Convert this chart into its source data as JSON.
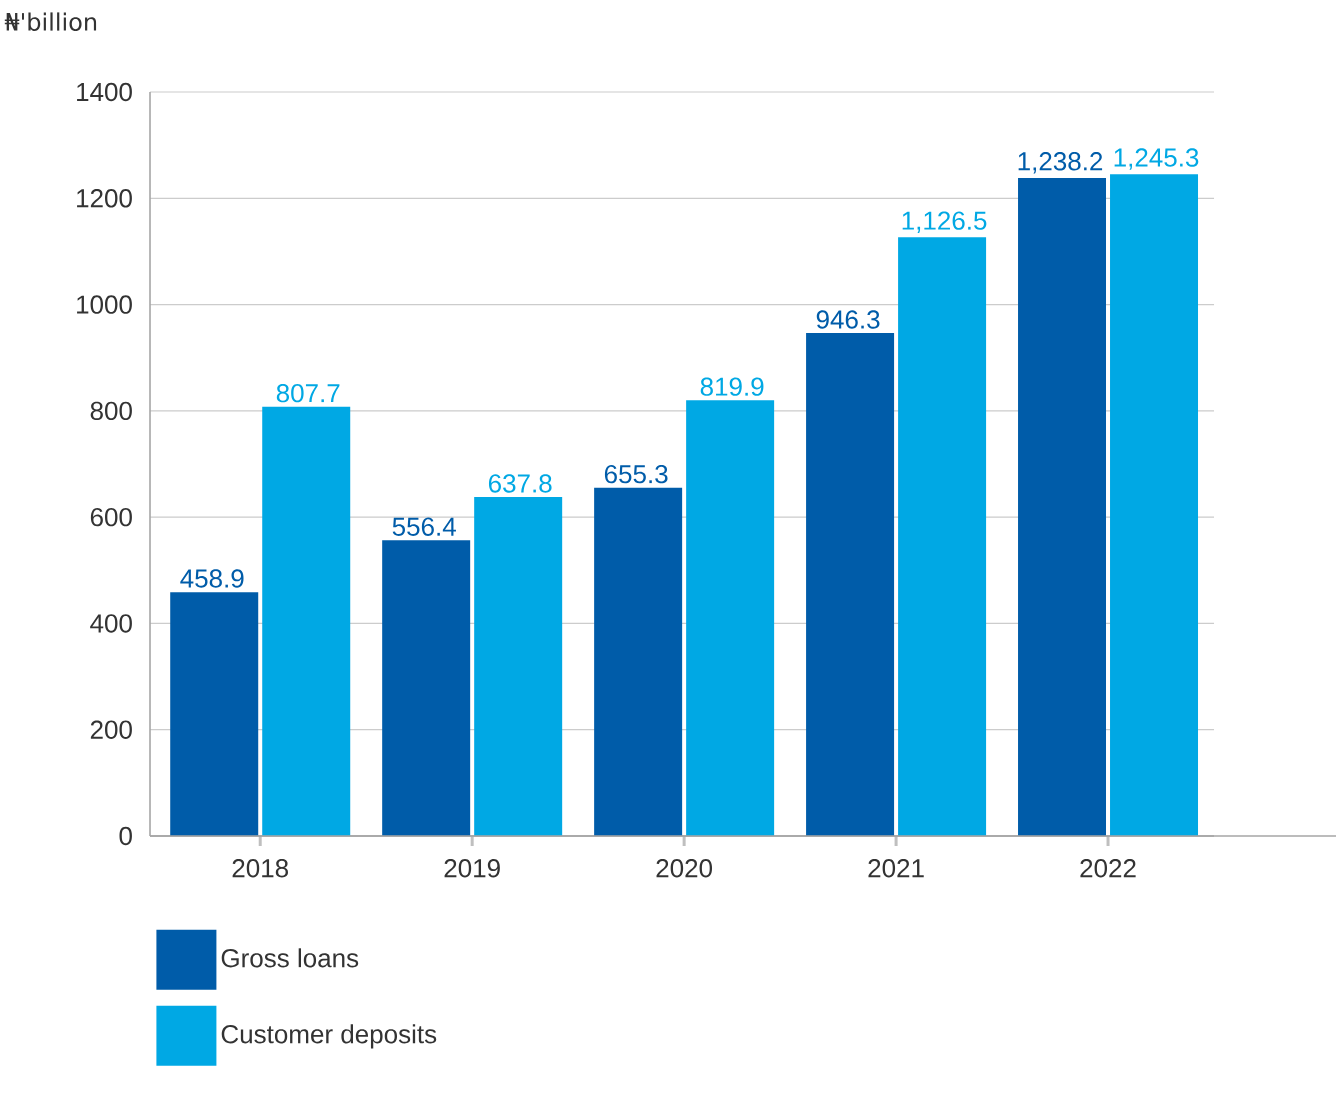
{
  "chart_data": {
    "type": "bar",
    "ylabel": "₦'billion",
    "categories": [
      "2018",
      "2019",
      "2020",
      "2021",
      "2022"
    ],
    "series": [
      {
        "name": "Gross loans",
        "color": "#005ca9",
        "values": [
          458.9,
          556.4,
          655.3,
          946.3,
          1238.2
        ],
        "value_labels": [
          "458.9",
          "556.4",
          "655.3",
          "946.3",
          "1,238.2"
        ]
      },
      {
        "name": "Customer deposits",
        "color": "#00a8e4",
        "values": [
          807.7,
          637.8,
          819.9,
          1126.5,
          1245.3
        ],
        "value_labels": [
          "807.7",
          "637.8",
          "819.9",
          "1,126.5",
          "1,245.3"
        ]
      }
    ],
    "ylim": [
      0,
      1400
    ],
    "yticks": [
      0,
      200,
      400,
      600,
      800,
      1000,
      1200,
      1400
    ],
    "grid": "y",
    "legend": "bottom left"
  }
}
